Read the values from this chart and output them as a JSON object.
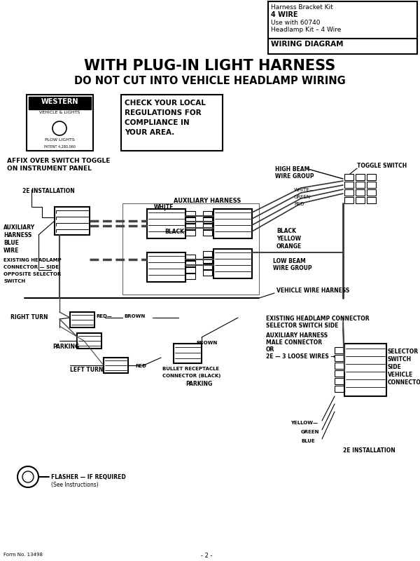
{
  "title1": "WITH PLUG-IN LIGHT HARNESS",
  "title2": "DO NOT CUT INTO VEHICLE HEADLAMP WIRING",
  "header_text": [
    "Harness Bracket Kit",
    "4 WIRE",
    "Use with 60740",
    "Headlamp Kit – 4 Wire"
  ],
  "header_bold": "WIRING DIAGRAM",
  "check_text": [
    "CHECK YOUR LOCAL",
    "REGULATIONS FOR",
    "COMPLIANCE IN",
    "YOUR AREA."
  ],
  "affix_text": [
    "AFFIX OVER SWITCH TOGGLE",
    "ON INSTRUMENT PANEL"
  ],
  "install_label": "2E INSTALLATION",
  "aux_harness_blue": [
    "AUXILIARY",
    "HARNESS",
    "BLUE",
    "WIRE"
  ],
  "existing_headlamp": [
    "EXISTING HEADLAMP",
    "CONNECTOR — SIDE",
    "OPPOSITE SELECTOR",
    "SWITCH"
  ],
  "aux_harness_label": "AUXILIARY HARNESS",
  "white_label": "WHITE",
  "black_label": "BLACK",
  "high_beam": [
    "HIGH BEAM",
    "WIRE GROUP"
  ],
  "toggle_switch": "TOGGLE SWITCH",
  "white_green_red": [
    "WHITE—",
    "GREEN",
    "RED"
  ],
  "black_yellow_orange": [
    "BLACK",
    "YELLOW",
    "ORANGE"
  ],
  "low_beam": [
    "LOW BEAM",
    "WIRE GROUP"
  ],
  "vehicle_harness": "VEHICLE WIRE HARNESS",
  "existing_connector2": [
    "EXISTING HEADLAMP CONNECTOR",
    "SELECTOR SWITCH SIDE"
  ],
  "aux_male": [
    "AUXILIARY HARNESS",
    "MALE CONNECTOR",
    "OR"
  ],
  "loose_wires": "2E — 3 LOOSE WIRES →",
  "selector_switch": [
    "SELECTOR",
    "SWITCH",
    "SIDE",
    "VEHICLE",
    "CONNECTOR"
  ],
  "right_turn": "RIGHT TURN",
  "red_label": "RED—",
  "brown_label": "BROWN",
  "parking_label": "PARKING",
  "left_turn": "LEFT TURN",
  "red_label2": "RED",
  "brown_label2": "BROWN",
  "bullet_receptacle": [
    "BULLET RECEPTACLE",
    "CONNECTOR (BLACK)"
  ],
  "parking_label2": "PARKING",
  "yellow_green_blue": [
    "YELLOW—",
    "GREEN",
    "BLUE"
  ],
  "install_label2": "2E INSTALLATION",
  "flasher_label": [
    "FLASHER — IF REQUIRED",
    "(See Instructions)"
  ],
  "form_number": "Form No. 13498",
  "page_number": "- 2 -",
  "bg_color": "#ffffff"
}
